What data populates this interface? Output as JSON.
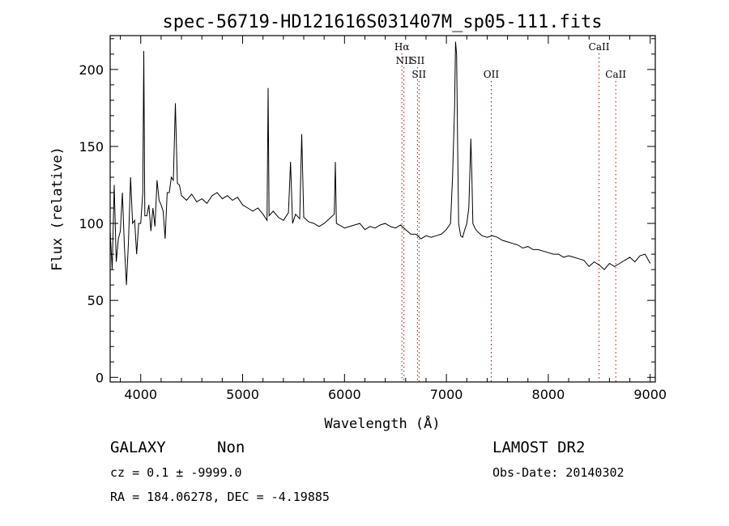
{
  "chart_data": {
    "type": "line",
    "title": "spec-56719-HD121616S031407M_sp05-111.fits",
    "xlabel": "Wavelength (Å)",
    "ylabel": "Flux (relative)",
    "xlim": [
      3700,
      9050
    ],
    "ylim": [
      -3,
      222
    ],
    "xticks": [
      4000,
      5000,
      6000,
      7000,
      8000,
      9000
    ],
    "yticks": [
      0,
      50,
      100,
      150,
      200
    ],
    "grid": false,
    "line_color": "#000000",
    "marker_color": "#cc0000",
    "series": [
      {
        "x": [
          3700,
          3720,
          3740,
          3760,
          3780,
          3800,
          3820,
          3840,
          3860,
          3880,
          3900,
          3920,
          3940,
          3960,
          3980,
          4000,
          4020,
          4030,
          4040,
          4060,
          4080,
          4100,
          4120,
          4140,
          4160,
          4180,
          4200,
          4220,
          4240,
          4260,
          4280,
          4300,
          4320,
          4340,
          4360,
          4380,
          4400,
          4450,
          4500,
          4550,
          4600,
          4650,
          4700,
          4750,
          4800,
          4850,
          4900,
          4950,
          5000,
          5050,
          5100,
          5150,
          5200,
          5240,
          5250,
          5260,
          5300,
          5350,
          5400,
          5450,
          5470,
          5490,
          5520,
          5560,
          5580,
          5600,
          5650,
          5700,
          5750,
          5800,
          5850,
          5900,
          5910,
          5920,
          5950,
          6000,
          6050,
          6100,
          6150,
          6200,
          6250,
          6300,
          6350,
          6400,
          6450,
          6500,
          6550,
          6600,
          6650,
          6700,
          6750,
          6800,
          6850,
          6900,
          6950,
          7000,
          7040,
          7060,
          7080,
          7090,
          7100,
          7110,
          7120,
          7140,
          7160,
          7180,
          7200,
          7220,
          7240,
          7250,
          7260,
          7280,
          7300,
          7350,
          7400,
          7450,
          7500,
          7550,
          7600,
          7650,
          7700,
          7750,
          7800,
          7850,
          7900,
          7950,
          8000,
          8050,
          8100,
          8150,
          8200,
          8250,
          8300,
          8350,
          8400,
          8450,
          8500,
          8550,
          8600,
          8650,
          8700,
          8750,
          8800,
          8850,
          8900,
          8950,
          9000
        ],
        "y": [
          95,
          70,
          125,
          75,
          90,
          95,
          120,
          85,
          60,
          88,
          130,
          100,
          102,
          80,
          100,
          100,
          120,
          212,
          105,
          105,
          112,
          95,
          110,
          98,
          128,
          115,
          112,
          108,
          90,
          120,
          120,
          130,
          128,
          178,
          126,
          125,
          118,
          115,
          119,
          114,
          116,
          113,
          118,
          120,
          116,
          118,
          115,
          117,
          112,
          110,
          108,
          110,
          106,
          102,
          188,
          105,
          108,
          104,
          102,
          107,
          140,
          100,
          106,
          103,
          158,
          104,
          101,
          100,
          98,
          100,
          103,
          106,
          140,
          100,
          99,
          97,
          98,
          99,
          100,
          96,
          98,
          97,
          99,
          100,
          98,
          97,
          99,
          96,
          93,
          93,
          90,
          92,
          91,
          92,
          93,
          96,
          100,
          130,
          175,
          218,
          210,
          150,
          100,
          92,
          91,
          96,
          100,
          110,
          155,
          130,
          100,
          97,
          95,
          92,
          91,
          92,
          91,
          89,
          88,
          87,
          86,
          84,
          85,
          83,
          83,
          82,
          81,
          80,
          80,
          78,
          79,
          78,
          77,
          76,
          72,
          75,
          73,
          70,
          74,
          72,
          74,
          76,
          78,
          75,
          79,
          80,
          74
        ]
      }
    ],
    "annotations": [
      {
        "label": "Hα",
        "x": 6563,
        "row": 1
      },
      {
        "label": "NII",
        "x": 6583,
        "row": 2
      },
      {
        "label": "SII",
        "x": 6716,
        "row": 2
      },
      {
        "label": "SII",
        "x": 6731,
        "row": 3
      },
      {
        "label": "OII",
        "x": 7440,
        "row": 3
      },
      {
        "label": "CaII",
        "x": 8498,
        "row": 1
      },
      {
        "label": "CaII",
        "x": 8662,
        "row": 3
      }
    ]
  },
  "info": {
    "object_class": "GALAXY",
    "object_subclass": "Non",
    "survey": "LAMOST DR2",
    "redshift_line": "cz = 0.1 ± -9999.0",
    "obs_date_line": "Obs-Date: 20140302",
    "coords_line": "RA = 184.06278, DEC =  -4.19885"
  }
}
